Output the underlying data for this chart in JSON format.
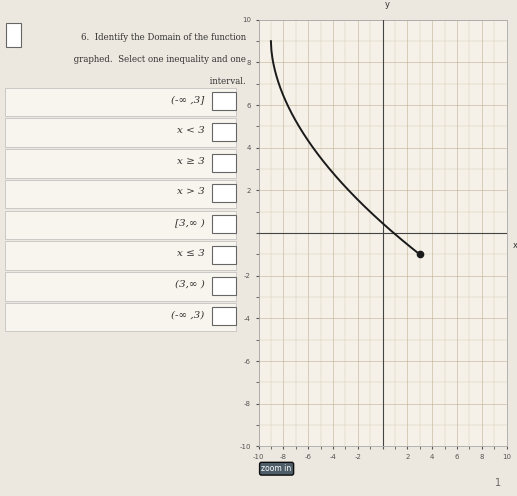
{
  "bg_color": "#ede8df",
  "graph_bg": "#f5f0e8",
  "grid_color": "#c0b090",
  "axis_color": "#444444",
  "curve_color": "#1a1a1a",
  "options": [
    "(-∞ ,3]",
    "x < 3",
    "x ≥ 3",
    "x > 3",
    "[3,∞ )",
    "x ≤ 3",
    "(3,∞ )",
    "(-∞ ,3)"
  ],
  "title_lines": [
    "6.  Identify the Domain of the function",
    "     graphed.  Select one inequality and one",
    "     interval."
  ],
  "graph_xlim": [
    -10,
    10
  ],
  "graph_ylim": [
    -10,
    10
  ]
}
